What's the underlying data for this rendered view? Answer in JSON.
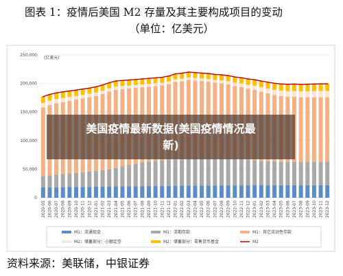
{
  "header": {
    "title": "图表 1：疫情后美国 M2 存量及其主要构成项目的变动",
    "subtitle": "（单位：亿美元）"
  },
  "chart_data": {
    "type": "bar",
    "stacked": true,
    "unit_label": "(亿美元)",
    "categories": [
      "2020-05",
      "2020-06",
      "2020-07",
      "2020-08",
      "2020-09",
      "2020-10",
      "2020-11",
      "2020-12",
      "2021-01",
      "2021-02",
      "2021-03",
      "2021-04",
      "2021-05",
      "2021-06",
      "2021-07",
      "2021-08",
      "2021-09",
      "2021-10",
      "2021-11",
      "2021-12",
      "2022-01",
      "2022-02",
      "2022-03",
      "2022-04",
      "2022-05",
      "2022-06",
      "2022-07",
      "2022-08",
      "2022-09",
      "2022-10",
      "2022-11",
      "2022-12",
      "2023-01",
      "2023-02",
      "2023-03",
      "2023-04",
      "2023-05",
      "2023-06",
      "2023-07",
      "2023-08",
      "2023-09",
      "2023-10",
      "2023-11",
      "2023-12"
    ],
    "series": [
      {
        "name": "M1：流通现金",
        "color": "#5b8cc4",
        "kind": "bar",
        "values": [
          18000,
          18200,
          18300,
          18500,
          18600,
          18700,
          18800,
          19000,
          19300,
          19500,
          19700,
          19900,
          20000,
          20100,
          20200,
          20300,
          20400,
          20500,
          20600,
          20800,
          20900,
          21000,
          21100,
          21200,
          21300,
          21300,
          21400,
          21400,
          21500,
          21500,
          21500,
          21600,
          21600,
          21600,
          21700,
          21800,
          21800,
          21800,
          21800,
          21900,
          21900,
          21900,
          22000,
          22000
        ]
      },
      {
        "name": "M1：活期存款",
        "color": "#a9a9a9",
        "kind": "bar",
        "values": [
          20000,
          21000,
          22000,
          23000,
          24000,
          25000,
          26000,
          27000,
          28000,
          29000,
          30000,
          32000,
          35000,
          37000,
          39000,
          41000,
          43000,
          44000,
          45000,
          46000,
          46000,
          46000,
          47000,
          48000,
          48000,
          48000,
          47000,
          47000,
          47000,
          46000,
          46000,
          45000,
          44000,
          43000,
          42000,
          42000,
          41000,
          41000,
          41000,
          41000,
          41000,
          41000,
          41000,
          41000
        ]
      },
      {
        "name": "M1：其它流动性存款",
        "color": "#f4b183",
        "kind": "bar",
        "values": [
          120000,
          123000,
          125000,
          126000,
          127000,
          128000,
          129000,
          130000,
          131000,
          133000,
          136000,
          137000,
          135000,
          134000,
          133000,
          132000,
          131000,
          131000,
          131000,
          132000,
          136000,
          137000,
          138000,
          136000,
          135000,
          134000,
          133000,
          132000,
          130000,
          128000,
          126000,
          124000,
          123000,
          121000,
          119000,
          116000,
          115000,
          114000,
          114000,
          113000,
          113000,
          113000,
          113000,
          113000
        ]
      },
      {
        "name": "M2：储蓄部分：小额定存",
        "color": "#fbe5d6",
        "kind": "bar",
        "values": [
          8000,
          7700,
          7400,
          7100,
          6800,
          6500,
          6200,
          6000,
          5900,
          5800,
          5700,
          5600,
          5500,
          5300,
          5100,
          5000,
          4900,
          4800,
          4700,
          4600,
          4500,
          4400,
          4400,
          4300,
          4300,
          4400,
          4600,
          4900,
          5300,
          5800,
          6400,
          7000,
          7600,
          8100,
          8600,
          9100,
          9500,
          9800,
          10100,
          10300,
          10500,
          10700,
          10800,
          10900
        ]
      },
      {
        "name": "M2：储蓄部分：零售货币基金",
        "color": "#ffc000",
        "kind": "bar",
        "values": [
          11000,
          10900,
          10800,
          10700,
          10500,
          10300,
          10200,
          10000,
          10000,
          10000,
          9900,
          9900,
          9800,
          9800,
          9700,
          9700,
          9600,
          9600,
          9500,
          9500,
          9500,
          9500,
          9500,
          9600,
          9600,
          9700,
          9800,
          9900,
          10000,
          10100,
          10200,
          10300,
          10400,
          10600,
          11000,
          11500,
          11800,
          12000,
          12100,
          12200,
          12300,
          12400,
          12500,
          12600
        ]
      },
      {
        "name": "M2",
        "color": "#c00000",
        "kind": "line",
        "values": [
          177000,
          180800,
          183500,
          185300,
          186900,
          188500,
          190200,
          192000,
          194200,
          197300,
          201300,
          204400,
          205300,
          206200,
          207000,
          208000,
          208900,
          209900,
          210800,
          212900,
          216900,
          217900,
          220000,
          219100,
          218200,
          217400,
          215800,
          215200,
          213800,
          211400,
          210100,
          207900,
          206600,
          204300,
          202300,
          200400,
          199100,
          198600,
          199000,
          198400,
          198700,
          199000,
          199300,
          199500
        ]
      }
    ],
    "ylim": [
      0,
      250000
    ],
    "yticks": [
      0,
      {
        "value": 50000,
        "label": "50,000"
      },
      {
        "value": 100000,
        "label": "100,000"
      },
      {
        "value": 150000,
        "label": "150,000"
      },
      {
        "value": 200000,
        "label": "200,000"
      },
      {
        "value": 250000,
        "label": "250,000"
      }
    ],
    "grid": true
  },
  "overlay": {
    "text": "美国疫情最新数据(美国疫情情况最新)"
  },
  "source": "资料来源：美联储，中银证券"
}
